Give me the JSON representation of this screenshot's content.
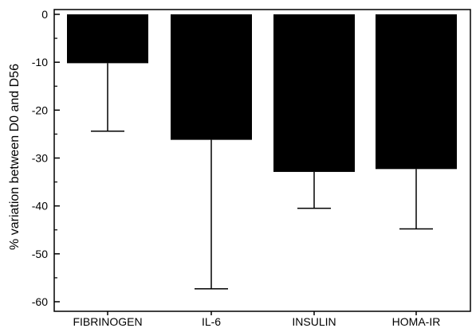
{
  "chart_data": {
    "type": "bar",
    "categories": [
      "FIBRINOGEN",
      "IL-6",
      "INSULIN",
      "HOMA-IR"
    ],
    "series": [
      {
        "values": [
          -10.2,
          -26.2,
          -32.9,
          -32.3
        ],
        "error_low": [
          -24.4,
          -57.3,
          -40.5,
          -44.8
        ]
      }
    ],
    "ylabel": "% variation between D0 and D56",
    "xlabel": "",
    "ylim": [
      -62,
      1
    ],
    "yticks": [
      0,
      -10,
      -20,
      -30,
      -40,
      -50,
      -60
    ],
    "bar_color": "#000000",
    "grid": false
  }
}
